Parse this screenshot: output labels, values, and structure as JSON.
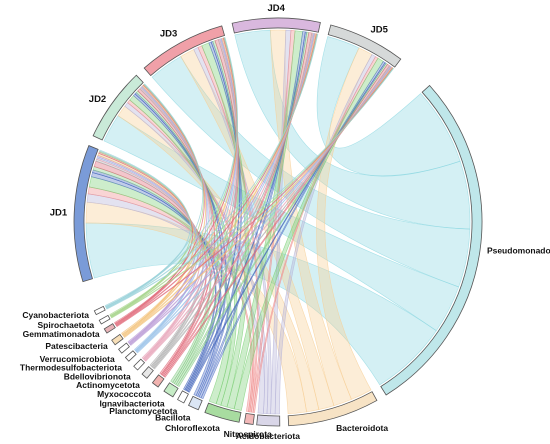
{
  "chart_data": {
    "type": "chord",
    "samples": [
      {
        "id": "JD1",
        "label": "JD1",
        "color": "#7a9bd8"
      },
      {
        "id": "JD2",
        "label": "JD2",
        "color": "#c9ead8"
      },
      {
        "id": "JD3",
        "label": "JD3",
        "color": "#f0a0a8"
      },
      {
        "id": "JD4",
        "label": "JD4",
        "color": "#d9b8de"
      },
      {
        "id": "JD5",
        "label": "JD5",
        "color": "#d6d9d9"
      }
    ],
    "taxa": [
      {
        "id": "Pseudomonadota",
        "label": "Pseudomonadota",
        "color": "#bfe7ea"
      },
      {
        "id": "Bacteroidota",
        "label": "Bacteroidota",
        "color": "#f7e3c5"
      },
      {
        "id": "Acidobacteriota",
        "label": "Acidobacteriota",
        "color": "#d9d6e8"
      },
      {
        "id": "Nitrospirota",
        "label": "Nitrospirota",
        "color": "#f2b8b8"
      },
      {
        "id": "Chloroflexota",
        "label": "Chloroflexota",
        "color": "#a8dca0"
      },
      {
        "id": "Bacillota",
        "label": "Bacillota",
        "color": "#dbe6f5"
      },
      {
        "id": "Planctomycetota",
        "label": "Planctomycetota",
        "color": "#ffffff"
      },
      {
        "id": "Ignavibacteriota",
        "label": "Ignavibacteriota",
        "color": "#c6ecc6"
      },
      {
        "id": "Myxococcota",
        "label": "Myxococcota",
        "color": "#f1b3b0"
      },
      {
        "id": "Actinomycetota",
        "label": "Actinomycetota",
        "color": "#e8e8e8"
      },
      {
        "id": "Bdellovibrionota",
        "label": "Bdellovibrionota",
        "color": "#ffffff"
      },
      {
        "id": "Thermodesulfobacteriota",
        "label": "Thermodesulfobacteriota",
        "color": "#ffffff"
      },
      {
        "id": "Verrucomicrobiota",
        "label": "Verrucomicrobiota",
        "color": "#ffffff"
      },
      {
        "id": "Patescibacteria",
        "label": "Patescibacteria",
        "color": "#f7dfb8"
      },
      {
        "id": "Gemmatimonadota",
        "label": "Gemmatimonadota",
        "color": "#e8b4b8"
      },
      {
        "id": "Spirochaetota",
        "label": "Spirochaetota",
        "color": "#ffffff"
      },
      {
        "id": "Cyanobacteriota",
        "label": "Cyanobacteriota",
        "color": "#ffffff"
      }
    ],
    "matrix": {
      "JD1": {
        "Pseudomonadota": 8,
        "Bacteroidota": 3,
        "Acidobacteriota": 1.2,
        "Nitrospirota": 1,
        "Chloroflexota": 1.5,
        "Bacillota": 0.6,
        "Planctomycetota": 0.4,
        "Ignavibacteriota": 0.5,
        "Myxococcota": 0.8,
        "Actinomycetota": 0.3,
        "Bdellovibrionota": 0.2,
        "Thermodesulfobacteriota": 0.2,
        "Verrucomicrobiota": 0.2,
        "Patescibacteria": 0.3,
        "Gemmatimonadota": 0.2,
        "Spirochaetota": 0.15,
        "Cyanobacteriota": 0.15
      },
      "JD2": {
        "Pseudomonadota": 5,
        "Bacteroidota": 2,
        "Acidobacteriota": 0.8,
        "Nitrospirota": 0.6,
        "Chloroflexota": 1,
        "Bacillota": 0.4,
        "Planctomycetota": 0.3,
        "Ignavibacteriota": 0.4,
        "Myxococcota": 0.5,
        "Actinomycetota": 0.2,
        "Bdellovibrionota": 0.15,
        "Thermodesulfobacteriota": 0.15,
        "Verrucomicrobiota": 0.15,
        "Patescibacteria": 0.2,
        "Gemmatimonadota": 0.15,
        "Spirochaetota": 0.1,
        "Cyanobacteriota": 0.1
      },
      "JD3": {
        "Pseudomonadota": 6,
        "Bacteroidota": 2.5,
        "Acidobacteriota": 0.8,
        "Nitrospirota": 0.7,
        "Chloroflexota": 1.3,
        "Bacillota": 0.4,
        "Planctomycetota": 0.3,
        "Ignavibacteriota": 0.4,
        "Myxococcota": 0.6,
        "Actinomycetota": 0.2,
        "Bdellovibrionota": 0.15,
        "Thermodesulfobacteriota": 0.15,
        "Verrucomicrobiota": 0.15,
        "Patescibacteria": 0.2,
        "Gemmatimonadota": 0.15,
        "Spirochaetota": 0.1,
        "Cyanobacteriota": 0.1
      },
      "JD4": {
        "Pseudomonadota": 7,
        "Bacteroidota": 3,
        "Acidobacteriota": 1,
        "Nitrospirota": 0.8,
        "Chloroflexota": 1.5,
        "Bacillota": 0.5,
        "Planctomycetota": 0.3,
        "Ignavibacteriota": 0.4,
        "Myxococcota": 0.6,
        "Actinomycetota": 0.2,
        "Bdellovibrionota": 0.15,
        "Thermodesulfobacteriota": 0.15,
        "Verrucomicrobiota": 0.15,
        "Patescibacteria": 0.2,
        "Gemmatimonadota": 0.15,
        "Spirochaetota": 0.1,
        "Cyanobacteriota": 0.1
      },
      "JD5": {
        "Pseudomonadota": 8,
        "Bacteroidota": 3.5,
        "Acidobacteriota": 1,
        "Nitrospirota": 0.7,
        "Chloroflexota": 1.5,
        "Bacillota": 0.5,
        "Planctomycetota": 0.3,
        "Ignavibacteriota": 0.4,
        "Myxococcota": 0.6,
        "Actinomycetota": 0.2,
        "Bdellovibrionota": 0.15,
        "Thermodesulfobacteriota": 0.15,
        "Verrucomicrobiota": 0.15,
        "Patescibacteria": 0.2,
        "Gemmatimonadota": 0.15,
        "Spirochaetota": 0.1,
        "Cyanobacteriota": 0.1
      }
    },
    "link_colors": {
      "Pseudomonadota": "#8fd8e2",
      "Bacteroidota": "#f7cf95",
      "Acidobacteriota": "#b6b3d8",
      "Nitrospirota": "#ef8f8f",
      "Chloroflexota": "#7ccf75",
      "Bacillota": "#5a78c8",
      "Planctomycetota": "#4466bb",
      "Ignavibacteriota": "#88cc88",
      "Myxococcota": "#e06a7a",
      "Actinomycetota": "#b0b0b0",
      "Bdellovibrionota": "#e7a3b8",
      "Thermodesulfobacteriota": "#99c2e8",
      "Verrucomicrobiota": "#b99ad6",
      "Patescibacteria": "#f3c27a",
      "Gemmatimonadota": "#e06a7a",
      "Spirochaetota": "#a7d48c",
      "Cyanobacteriota": "#9ad1d9"
    },
    "legend": false
  }
}
